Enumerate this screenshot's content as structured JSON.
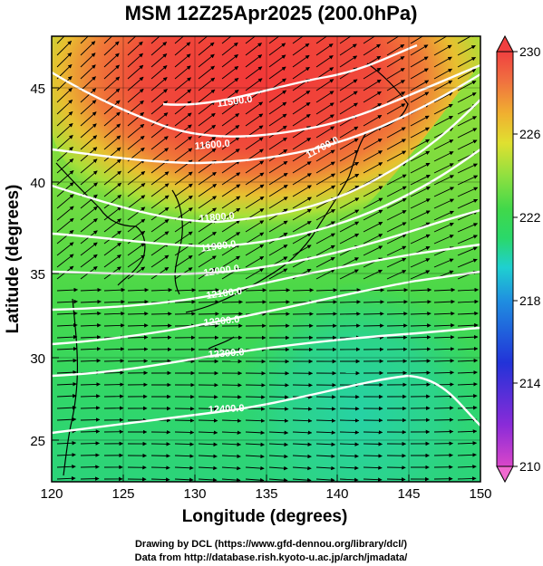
{
  "title": "MSM 12Z25Apr2025 (200.0hPa)",
  "chart_data": {
    "type": "heatmap",
    "title": "MSM 12Z25Apr2025 (200.0hPa)",
    "xlabel": "Longitude (degrees)",
    "ylabel": "Latitude  (degrees)",
    "xlim": [
      120,
      150
    ],
    "ylim": [
      22.4,
      47.6
    ],
    "xticks": [
      "120",
      "125",
      "130",
      "135",
      "140",
      "145",
      "150"
    ],
    "yticks": [
      "25",
      "30",
      "35",
      "40",
      "45"
    ],
    "colorbar": {
      "range": [
        210,
        230
      ],
      "tick_labels": [
        "230",
        "226",
        "222",
        "218",
        "214",
        "210"
      ],
      "colors": [
        "#d946c9",
        "#8a2bd8",
        "#2233d8",
        "#1f8fe0",
        "#1fd0d0",
        "#2ad86a",
        "#40d84a",
        "#8fe040",
        "#e0e030",
        "#f0b030",
        "#f07040",
        "#f04040"
      ]
    },
    "contour_levels": [
      "11500.0",
      "11600.0",
      "11700.0",
      "11800.0",
      "11900.0",
      "12000.0",
      "12100.0",
      "12200.0",
      "12300.0",
      "12400.0"
    ],
    "contour_label_text": [
      "11500.0",
      "11600.0",
      "11700.0",
      "11800.0",
      "11900.0",
      "12000.0",
      "12100.0",
      "12200.0",
      "12300.0",
      "12400.0"
    ],
    "grid": true,
    "vectors": "streamline arrows, predominantly westerly to south-westerly flow"
  },
  "credits": {
    "line1": "Drawing by DCL (https://www.gfd-dennou.org/library/dcl/)",
    "line2": "Data from http://database.rish.kyoto-u.ac.jp/arch/jmadata/"
  }
}
